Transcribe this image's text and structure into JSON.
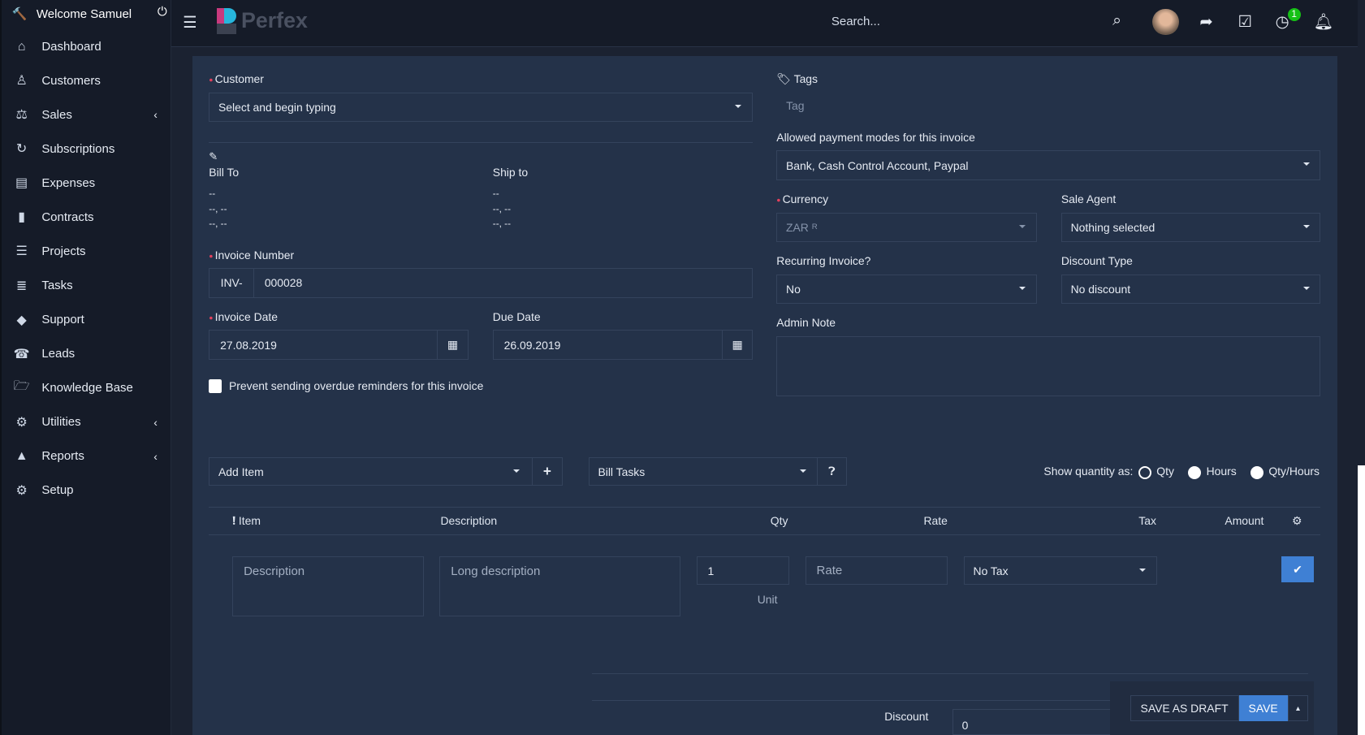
{
  "sidebar": {
    "welcome": "Welcome Samuel",
    "items": [
      {
        "label": "Dashboard",
        "icon": "home-icon",
        "glyph": "⌂"
      },
      {
        "label": "Customers",
        "icon": "user-icon",
        "glyph": "♙"
      },
      {
        "label": "Sales",
        "icon": "balance-scale-icon",
        "glyph": "⚖",
        "chevron": true
      },
      {
        "label": "Subscriptions",
        "icon": "refresh-icon",
        "glyph": "↻"
      },
      {
        "label": "Expenses",
        "icon": "file-text-icon",
        "glyph": "▤"
      },
      {
        "label": "Contracts",
        "icon": "file-icon",
        "glyph": "▮"
      },
      {
        "label": "Projects",
        "icon": "bars-icon",
        "glyph": "☰"
      },
      {
        "label": "Tasks",
        "icon": "tasks-icon",
        "glyph": "≣"
      },
      {
        "label": "Support",
        "icon": "ticket-icon",
        "glyph": "◆"
      },
      {
        "label": "Leads",
        "icon": "tty-icon",
        "glyph": "☎"
      },
      {
        "label": "Knowledge Base",
        "icon": "folder-open-icon",
        "glyph": "🗁"
      },
      {
        "label": "Utilities",
        "icon": "cogs-icon",
        "glyph": "⚙",
        "chevron": true
      },
      {
        "label": "Reports",
        "icon": "area-chart-icon",
        "glyph": "▲",
        "chevron": true
      },
      {
        "label": "Setup",
        "icon": "cog-icon",
        "glyph": "⚙"
      }
    ]
  },
  "header": {
    "logo": "Perfex",
    "search_placeholder": "Search...",
    "timer_badge": "1"
  },
  "form": {
    "customer_label": "Customer",
    "customer_placeholder": "Select and begin typing",
    "bill_to": "Bill To",
    "ship_to": "Ship to",
    "addr1": "--",
    "addr2": "--, --",
    "addr3": "--, --",
    "invoice_number_label": "Invoice Number",
    "invoice_prefix": "INV-",
    "invoice_number": "000028",
    "invoice_date_label": "Invoice Date",
    "invoice_date": "27.08.2019",
    "due_date_label": "Due Date",
    "due_date": "26.09.2019",
    "prevent_reminders": "Prevent sending overdue reminders for this invoice",
    "tags_label": "Tags",
    "tags_placeholder": "Tag",
    "payment_modes_label": "Allowed payment modes for this invoice",
    "payment_modes": "Bank, Cash Control Account, Paypal",
    "currency_label": "Currency",
    "currency": "ZAR",
    "currency_symbol": "R",
    "sale_agent_label": "Sale Agent",
    "sale_agent": "Nothing selected",
    "recurring_label": "Recurring Invoice?",
    "recurring": "No",
    "discount_type_label": "Discount Type",
    "discount_type": "No discount",
    "admin_note_label": "Admin Note"
  },
  "items": {
    "add_item": "Add Item",
    "bill_tasks": "Bill Tasks",
    "show_qty_label": "Show quantity as:",
    "qty_options": [
      "Qty",
      "Hours",
      "Qty/Hours"
    ],
    "qty_selected": "Qty",
    "columns": [
      "Item",
      "Description",
      "Qty",
      "Rate",
      "Tax",
      "Amount"
    ],
    "row": {
      "description_placeholder": "Description",
      "long_description_placeholder": "Long description",
      "qty": "1",
      "rate_placeholder": "Rate",
      "unit": "Unit",
      "tax": "No Tax"
    },
    "discount_label": "Discount",
    "discount_value": "0"
  },
  "actions": {
    "save_draft": "SAVE AS DRAFT",
    "save": "SAVE"
  },
  "colors": {
    "accent": "#3f80d4",
    "panel": "#243249",
    "sidebar": "#151b28",
    "badge": "#16c116"
  }
}
